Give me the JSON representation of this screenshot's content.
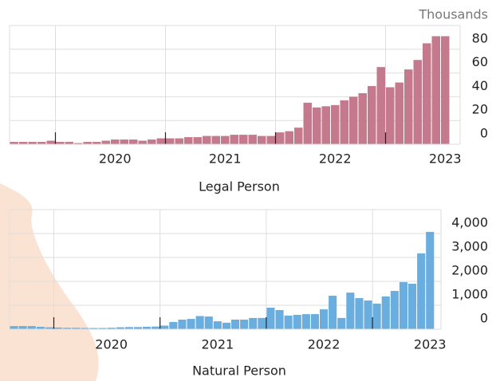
{
  "chart_data": [
    {
      "type": "bar",
      "subtitle": "Thousands",
      "xlabel": "Legal Person",
      "categories": [
        null,
        null,
        null,
        null,
        null,
        null,
        null,
        null,
        null,
        null,
        null,
        "2020",
        null,
        null,
        null,
        null,
        null,
        null,
        null,
        null,
        null,
        null,
        null,
        "2021",
        null,
        null,
        null,
        null,
        null,
        null,
        null,
        null,
        null,
        null,
        null,
        "2022",
        null,
        null,
        null,
        null,
        null,
        null,
        null,
        null,
        null,
        null,
        null,
        "2023"
      ],
      "values": [
        2,
        2,
        2,
        2,
        3,
        2,
        2,
        1,
        2,
        2,
        3,
        4,
        4,
        4,
        3,
        4,
        5,
        5,
        5,
        6,
        6,
        7,
        7,
        7,
        8,
        8,
        8,
        7,
        7,
        10,
        11,
        14,
        35,
        31,
        32,
        33,
        37,
        40,
        43,
        49,
        65,
        48,
        52,
        63,
        71,
        85,
        91,
        91
      ],
      "color": "#c47a8c",
      "ylim": [
        0,
        100
      ],
      "yticks": [
        0,
        20,
        40,
        60,
        80
      ],
      "grid": true
    },
    {
      "type": "bar",
      "xlabel": "Natural Person",
      "categories": [
        null,
        null,
        null,
        null,
        null,
        null,
        null,
        null,
        null,
        null,
        null,
        "2020",
        null,
        null,
        null,
        null,
        null,
        null,
        null,
        null,
        null,
        null,
        null,
        "2021",
        null,
        null,
        null,
        null,
        null,
        null,
        null,
        null,
        null,
        null,
        null,
        "2022",
        null,
        null,
        null,
        null,
        null,
        null,
        null,
        null,
        null,
        null,
        null,
        "2023"
      ],
      "values": [
        130,
        130,
        130,
        100,
        80,
        70,
        60,
        60,
        50,
        50,
        50,
        60,
        80,
        90,
        90,
        100,
        110,
        150,
        300,
        400,
        430,
        550,
        530,
        330,
        270,
        400,
        400,
        470,
        470,
        900,
        800,
        570,
        600,
        630,
        630,
        830,
        1400,
        470,
        1530,
        1300,
        1200,
        1070,
        1370,
        1600,
        1970,
        1900,
        3170,
        4070
      ],
      "color": "#6aaee0",
      "ylim": [
        0,
        5000
      ],
      "yticks": [
        0,
        {
          "value": 1000,
          "label": "1,000"
        },
        {
          "value": 2000,
          "label": "2,000"
        },
        {
          "value": 3000,
          "label": "3,000"
        },
        {
          "value": 4000,
          "label": "4,000"
        }
      ],
      "grid": true
    }
  ]
}
